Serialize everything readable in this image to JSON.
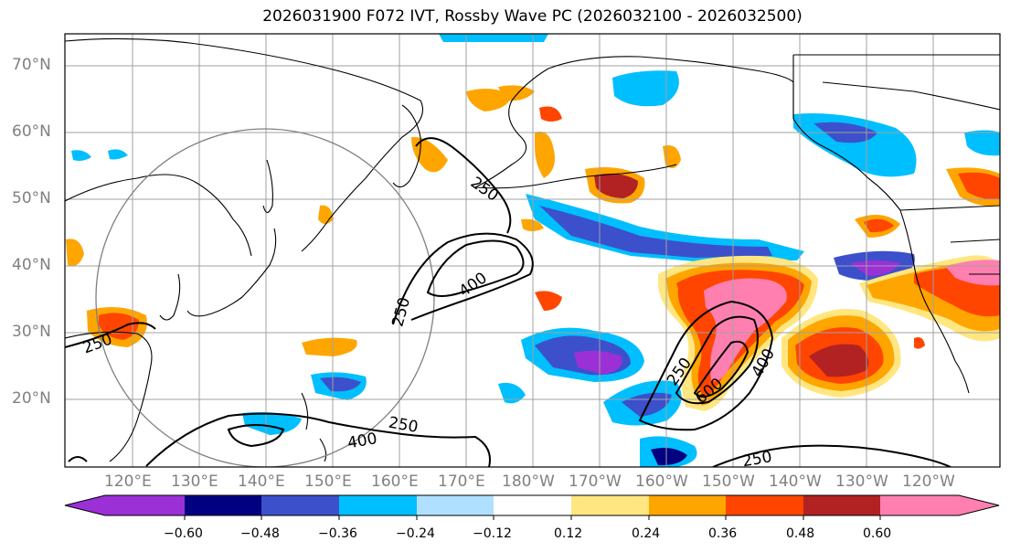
{
  "title": "2026031900 F072 IVT, Rossby Wave PC (2026032100 - 2026032500)",
  "latitude_labels": [
    "70°N",
    "60°N",
    "50°N",
    "40°N",
    "30°N",
    "20°N"
  ],
  "longitude_labels": [
    "120°E",
    "130°E",
    "140°E",
    "150°E",
    "160°E",
    "170°E",
    "180°W",
    "170°W",
    "160°W",
    "150°W",
    "140°W",
    "130°W",
    "120°W"
  ],
  "contour_labels": [
    "250",
    "400",
    "250",
    "250",
    "250",
    "400",
    "250",
    "600",
    "400",
    "250"
  ],
  "colorbar": {
    "ticks": [
      "−0.60",
      "−0.48",
      "−0.36",
      "−0.24",
      "−0.12",
      "0.12",
      "0.24",
      "0.36",
      "0.48",
      "0.60"
    ],
    "colors": [
      "#9b30d6",
      "#000080",
      "#3c50cc",
      "#00bfff",
      "#b0e0ff",
      "#ffffff",
      "#ffe680",
      "#ffa500",
      "#ff4500",
      "#b22222",
      "#ff80b0"
    ]
  },
  "legend_colors": {
    "gridline": "#a0a0a0",
    "coastline": "#000000",
    "range_circle": "#808080"
  }
}
